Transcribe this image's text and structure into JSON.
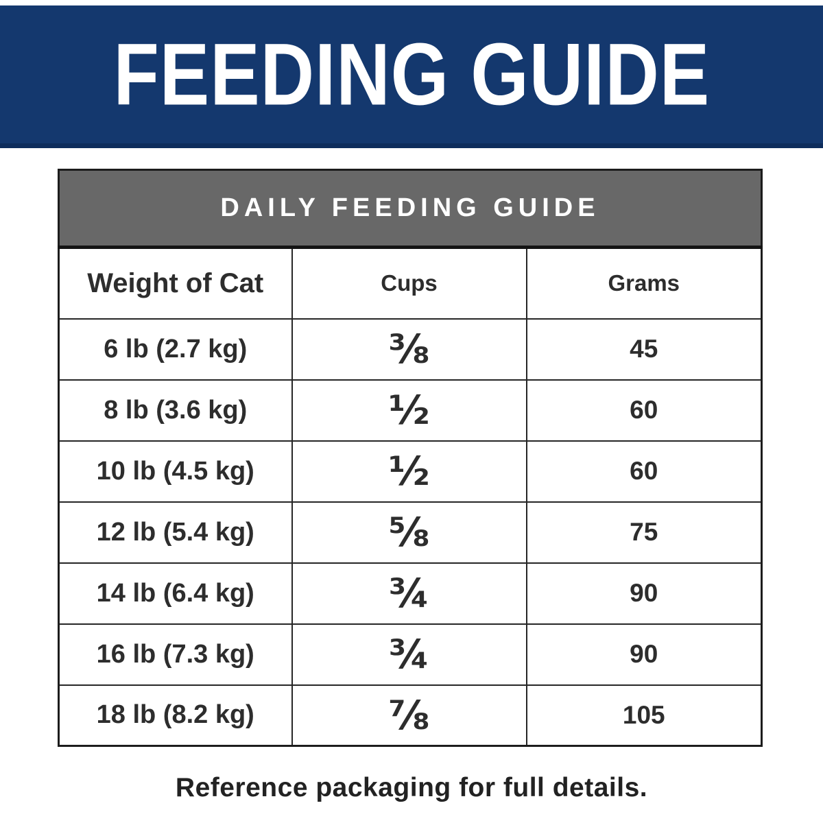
{
  "banner": {
    "title": "FEEDING GUIDE",
    "bg_color": "#14386e",
    "border_color": "#0e2d5c",
    "text_color": "#ffffff"
  },
  "table": {
    "title": "DAILY FEEDING GUIDE",
    "title_bg_color": "#686868",
    "title_text_color": "#ffffff",
    "border_color": "#262626",
    "text_color": "#2d2d2d",
    "columns": [
      "Weight of Cat",
      "Cups",
      "Grams"
    ],
    "rows": [
      {
        "weight": "6 lb (2.7 kg)",
        "cups": "⅜",
        "grams": "45"
      },
      {
        "weight": "8 lb (3.6 kg)",
        "cups": "½",
        "grams": "60"
      },
      {
        "weight": "10 lb (4.5 kg)",
        "cups": "½",
        "grams": "60"
      },
      {
        "weight": "12 lb (5.4 kg)",
        "cups": "⅝",
        "grams": "75"
      },
      {
        "weight": "14 lb (6.4 kg)",
        "cups": "¾",
        "grams": "90"
      },
      {
        "weight": "16 lb (7.3 kg)",
        "cups": "¾",
        "grams": "90"
      },
      {
        "weight": "18 lb (8.2 kg)",
        "cups": "⅞",
        "grams": "105"
      }
    ]
  },
  "footer": {
    "note": "Reference packaging for full details."
  }
}
